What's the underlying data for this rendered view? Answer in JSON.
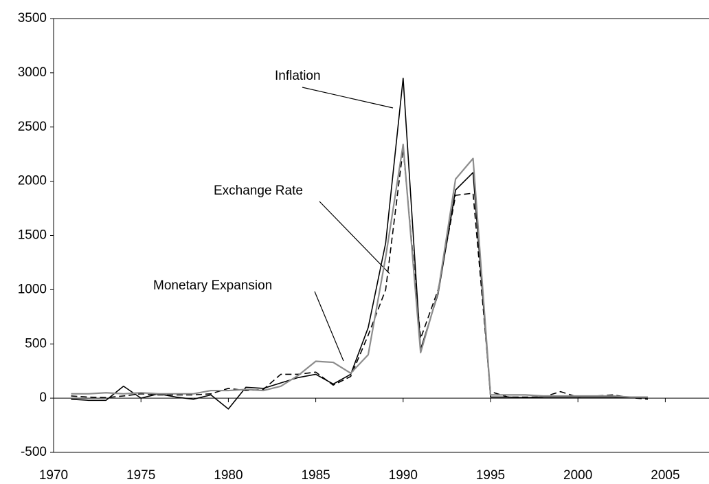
{
  "chart_data": {
    "type": "line",
    "x": [
      1971,
      1972,
      1973,
      1974,
      1975,
      1976,
      1977,
      1978,
      1979,
      1980,
      1981,
      1982,
      1983,
      1984,
      1985,
      1986,
      1987,
      1988,
      1989,
      1990,
      1991,
      1992,
      1993,
      1994,
      1995,
      1996,
      1997,
      1998,
      1999,
      2000,
      2001,
      2002,
      2003,
      2004
    ],
    "series": [
      {
        "name": "Inflation",
        "color": "#000000",
        "dash": false,
        "values": [
          -10,
          -20,
          -20,
          110,
          0,
          40,
          10,
          -10,
          30,
          -100,
          100,
          90,
          140,
          190,
          220,
          130,
          220,
          650,
          1430,
          2950,
          450,
          960,
          1920,
          2080,
          10,
          10,
          5,
          10,
          10,
          10,
          10,
          10,
          5,
          0
        ]
      },
      {
        "name": "Exchange Rate",
        "color": "#000000",
        "dash": true,
        "values": [
          20,
          10,
          5,
          20,
          40,
          30,
          30,
          30,
          40,
          90,
          70,
          80,
          220,
          220,
          240,
          120,
          200,
          580,
          1000,
          2300,
          550,
          1000,
          1870,
          1890,
          60,
          10,
          10,
          10,
          60,
          10,
          20,
          30,
          5,
          -10
        ]
      },
      {
        "name": "Monetary Expansion",
        "color": "#8c8c8c",
        "dash": false,
        "values": [
          40,
          40,
          50,
          40,
          50,
          40,
          40,
          40,
          70,
          70,
          80,
          70,
          110,
          210,
          340,
          330,
          230,
          400,
          1300,
          2340,
          420,
          980,
          2020,
          2210,
          30,
          30,
          30,
          20,
          20,
          20,
          20,
          20,
          10,
          10
        ]
      }
    ],
    "xlim": [
      1970,
      2007.5
    ],
    "xticks": [
      1970,
      1975,
      1980,
      1985,
      1990,
      1995,
      2000,
      2005
    ],
    "ylim": [
      -500,
      3500
    ],
    "yticks": [
      -500,
      0,
      500,
      1000,
      1500,
      2000,
      2500,
      3000,
      3500
    ]
  }
}
